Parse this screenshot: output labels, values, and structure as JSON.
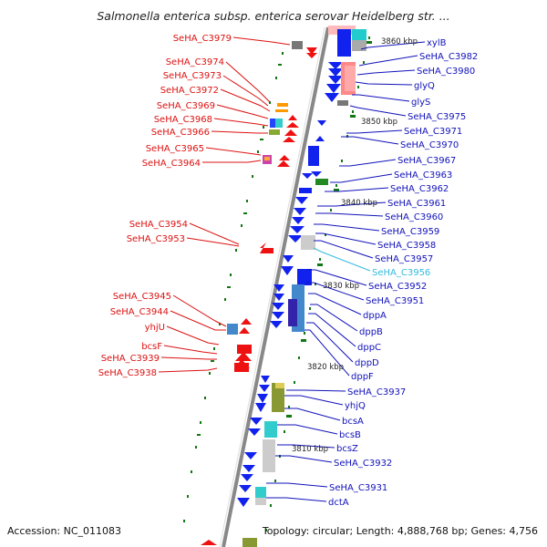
{
  "title": "Salmonella enterica subsp. enterica serovar Heidelberg str. ...",
  "footer": {
    "accession": "Accession: NC_011083",
    "topology": "Topology: circular; Length: 4,888,768 bp; Genes: 4,756"
  },
  "colors": {
    "left_label": "#dd1111",
    "right_label": "#1111bb",
    "highlight_label": "#33bbdd",
    "backbone": "#888888",
    "gene_forward": "#ee1111",
    "gene_reverse": "#1122ee",
    "tick": "#117711"
  },
  "kbp_markers": [
    "3860 kbp",
    "3850 kbp",
    "3840 kbp",
    "3830 kbp",
    "3820 kbp",
    "3810 kbp"
  ],
  "left_labels": [
    "SeHA_C3979",
    "SeHA_C3974",
    "SeHA_C3973",
    "SeHA_C3972",
    "SeHA_C3969",
    "SeHA_C3968",
    "SeHA_C3966",
    "SeHA_C3965",
    "SeHA_C3964",
    "SeHA_C3954",
    "SeHA_C3953",
    "SeHA_C3945",
    "SeHA_C3944",
    "yhjU",
    "bcsF",
    "SeHA_C3939",
    "SeHA_C3938"
  ],
  "right_labels": [
    "xylB",
    "SeHA_C3982",
    "SeHA_C3980",
    "glyQ",
    "glyS",
    "SeHA_C3975",
    "SeHA_C3971",
    "SeHA_C3970",
    "SeHA_C3967",
    "SeHA_C3963",
    "SeHA_C3962",
    "SeHA_C3961",
    "SeHA_C3960",
    "SeHA_C3959",
    "SeHA_C3958",
    "SeHA_C3957",
    "SeHA_C3956",
    "SeHA_C3952",
    "SeHA_C3951",
    "dppA",
    "dppB",
    "dppC",
    "dppD",
    "dppF",
    "SeHA_C3937",
    "yhjQ",
    "bcsA",
    "bcsB",
    "bcsZ",
    "SeHA_C3932",
    "SeHA_C3931",
    "dctA"
  ]
}
